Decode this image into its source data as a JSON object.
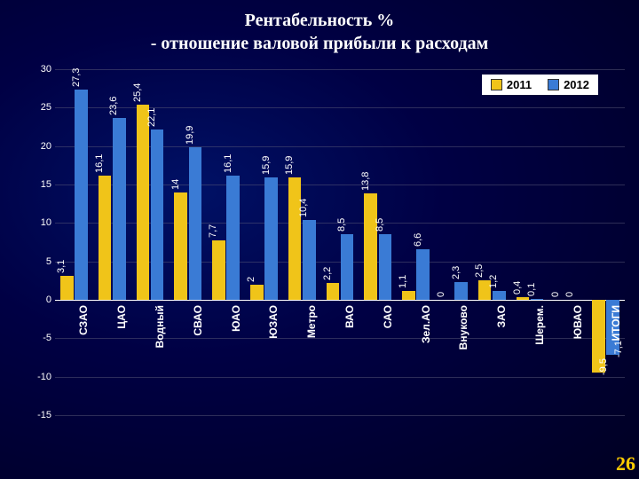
{
  "title_line1": "Рентабельность %",
  "title_line2": "- отношение валовой прибыли к расходам",
  "slide_number": "26",
  "chart": {
    "type": "bar",
    "background_color": "#000033",
    "text_color": "#ffffff",
    "grid_color": "rgba(90,90,120,0.5)",
    "ylim": [
      -15,
      30
    ],
    "ytick_step": 5,
    "yticks": [
      -15,
      -10,
      -5,
      0,
      5,
      10,
      15,
      20,
      25,
      30
    ],
    "legend_position": "top-right",
    "legend_bg": "#ffffff",
    "axis_font_size": 11,
    "label_font_size": 12,
    "value_label_font_size": 11,
    "value_label_rotation": -90,
    "cat_label_rotation": -90,
    "title_font_size": 20,
    "title_font_family": "Times New Roman",
    "series": [
      {
        "name": "2011",
        "color": "#f0c419"
      },
      {
        "name": "2012",
        "color": "#3a7bd5"
      }
    ],
    "categories": [
      {
        "label": "СЗАО",
        "values": [
          3.1,
          27.3
        ]
      },
      {
        "label": "ЦАО",
        "values": [
          16.1,
          23.6
        ]
      },
      {
        "label": "Водный",
        "values": [
          25.4,
          22.1
        ]
      },
      {
        "label": "СВАО",
        "values": [
          14,
          19.9
        ]
      },
      {
        "label": "ЮАО",
        "values": [
          7.7,
          16.1
        ]
      },
      {
        "label": "ЮЗАО",
        "values": [
          2,
          15.9
        ]
      },
      {
        "label": "Метро",
        "values": [
          15.9,
          10.4
        ]
      },
      {
        "label": "ВАО",
        "values": [
          2.2,
          8.5
        ]
      },
      {
        "label": "САО",
        "values": [
          13.8,
          8.5
        ]
      },
      {
        "label": "Зел.АО",
        "values": [
          1.1,
          6.6
        ]
      },
      {
        "label": "Внуково",
        "values": [
          0,
          2.3
        ]
      },
      {
        "label": "ЗАО",
        "values": [
          2.5,
          1.2
        ]
      },
      {
        "label": "Шерем.",
        "values": [
          0.4,
          0.1
        ]
      },
      {
        "label": "ЮВАО",
        "values": [
          0,
          0
        ]
      },
      {
        "label": "ИТОГИ",
        "values": [
          -9.5,
          -7.1
        ]
      }
    ]
  }
}
